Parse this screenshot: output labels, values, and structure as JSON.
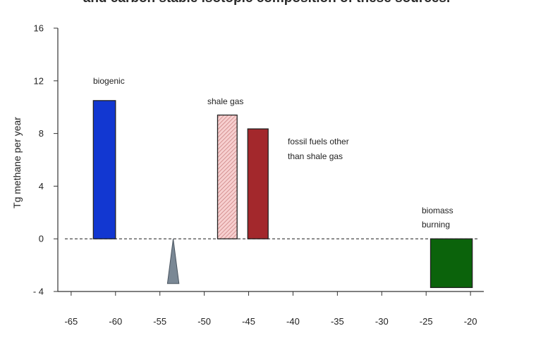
{
  "chart_data": {
    "type": "bar",
    "title": "and carbon stable isotopic composition of these sources.",
    "xlabel": "",
    "ylabel": "Tg methane per year",
    "xlim": [
      -66.5,
      -18.5
    ],
    "ylim": [
      -4,
      16
    ],
    "yticks": [
      -4,
      0,
      4,
      8,
      12,
      16
    ],
    "ytick_labels": [
      "- 4",
      "0",
      "4",
      "8",
      "12",
      "16"
    ],
    "xticks": [
      -65,
      -60,
      -55,
      -50,
      -45,
      -40,
      -35,
      -30,
      -25,
      -20
    ],
    "xtick_labels": [
      "-65",
      "-60",
      "-55",
      "-50",
      "-45",
      "-40",
      "-35",
      "-30",
      "-25",
      "-20"
    ],
    "zero_line": "dashed",
    "bars": [
      {
        "label": "biogenic",
        "x_from": -62.5,
        "x_to": -60.0,
        "value": 10.5,
        "color": "#1237d1"
      },
      {
        "label": "shale gas",
        "x_from": -48.5,
        "x_to": -46.3,
        "value": 9.4,
        "color": "#f2c1c1",
        "pattern": "hatched"
      },
      {
        "label": "fossil fuels other than shale gas",
        "x_from": -45.1,
        "x_to": -42.8,
        "value": 8.35,
        "color": "#a3282c"
      },
      {
        "label": "biomass burning",
        "x_from": -24.5,
        "x_to": -19.8,
        "value": -3.7,
        "color": "#0b630b"
      }
    ],
    "triangle": {
      "x_center": -53.5,
      "half_width": 0.65,
      "y_top": 0,
      "y_bottom": -3.4,
      "color": "#7a8895"
    }
  },
  "annotations": [
    {
      "text": "biogenic"
    },
    {
      "text": "shale gas"
    },
    {
      "text": "fossil fuels other"
    },
    {
      "text": "than shale gas"
    },
    {
      "text": "biomass"
    },
    {
      "text": "burning"
    }
  ]
}
